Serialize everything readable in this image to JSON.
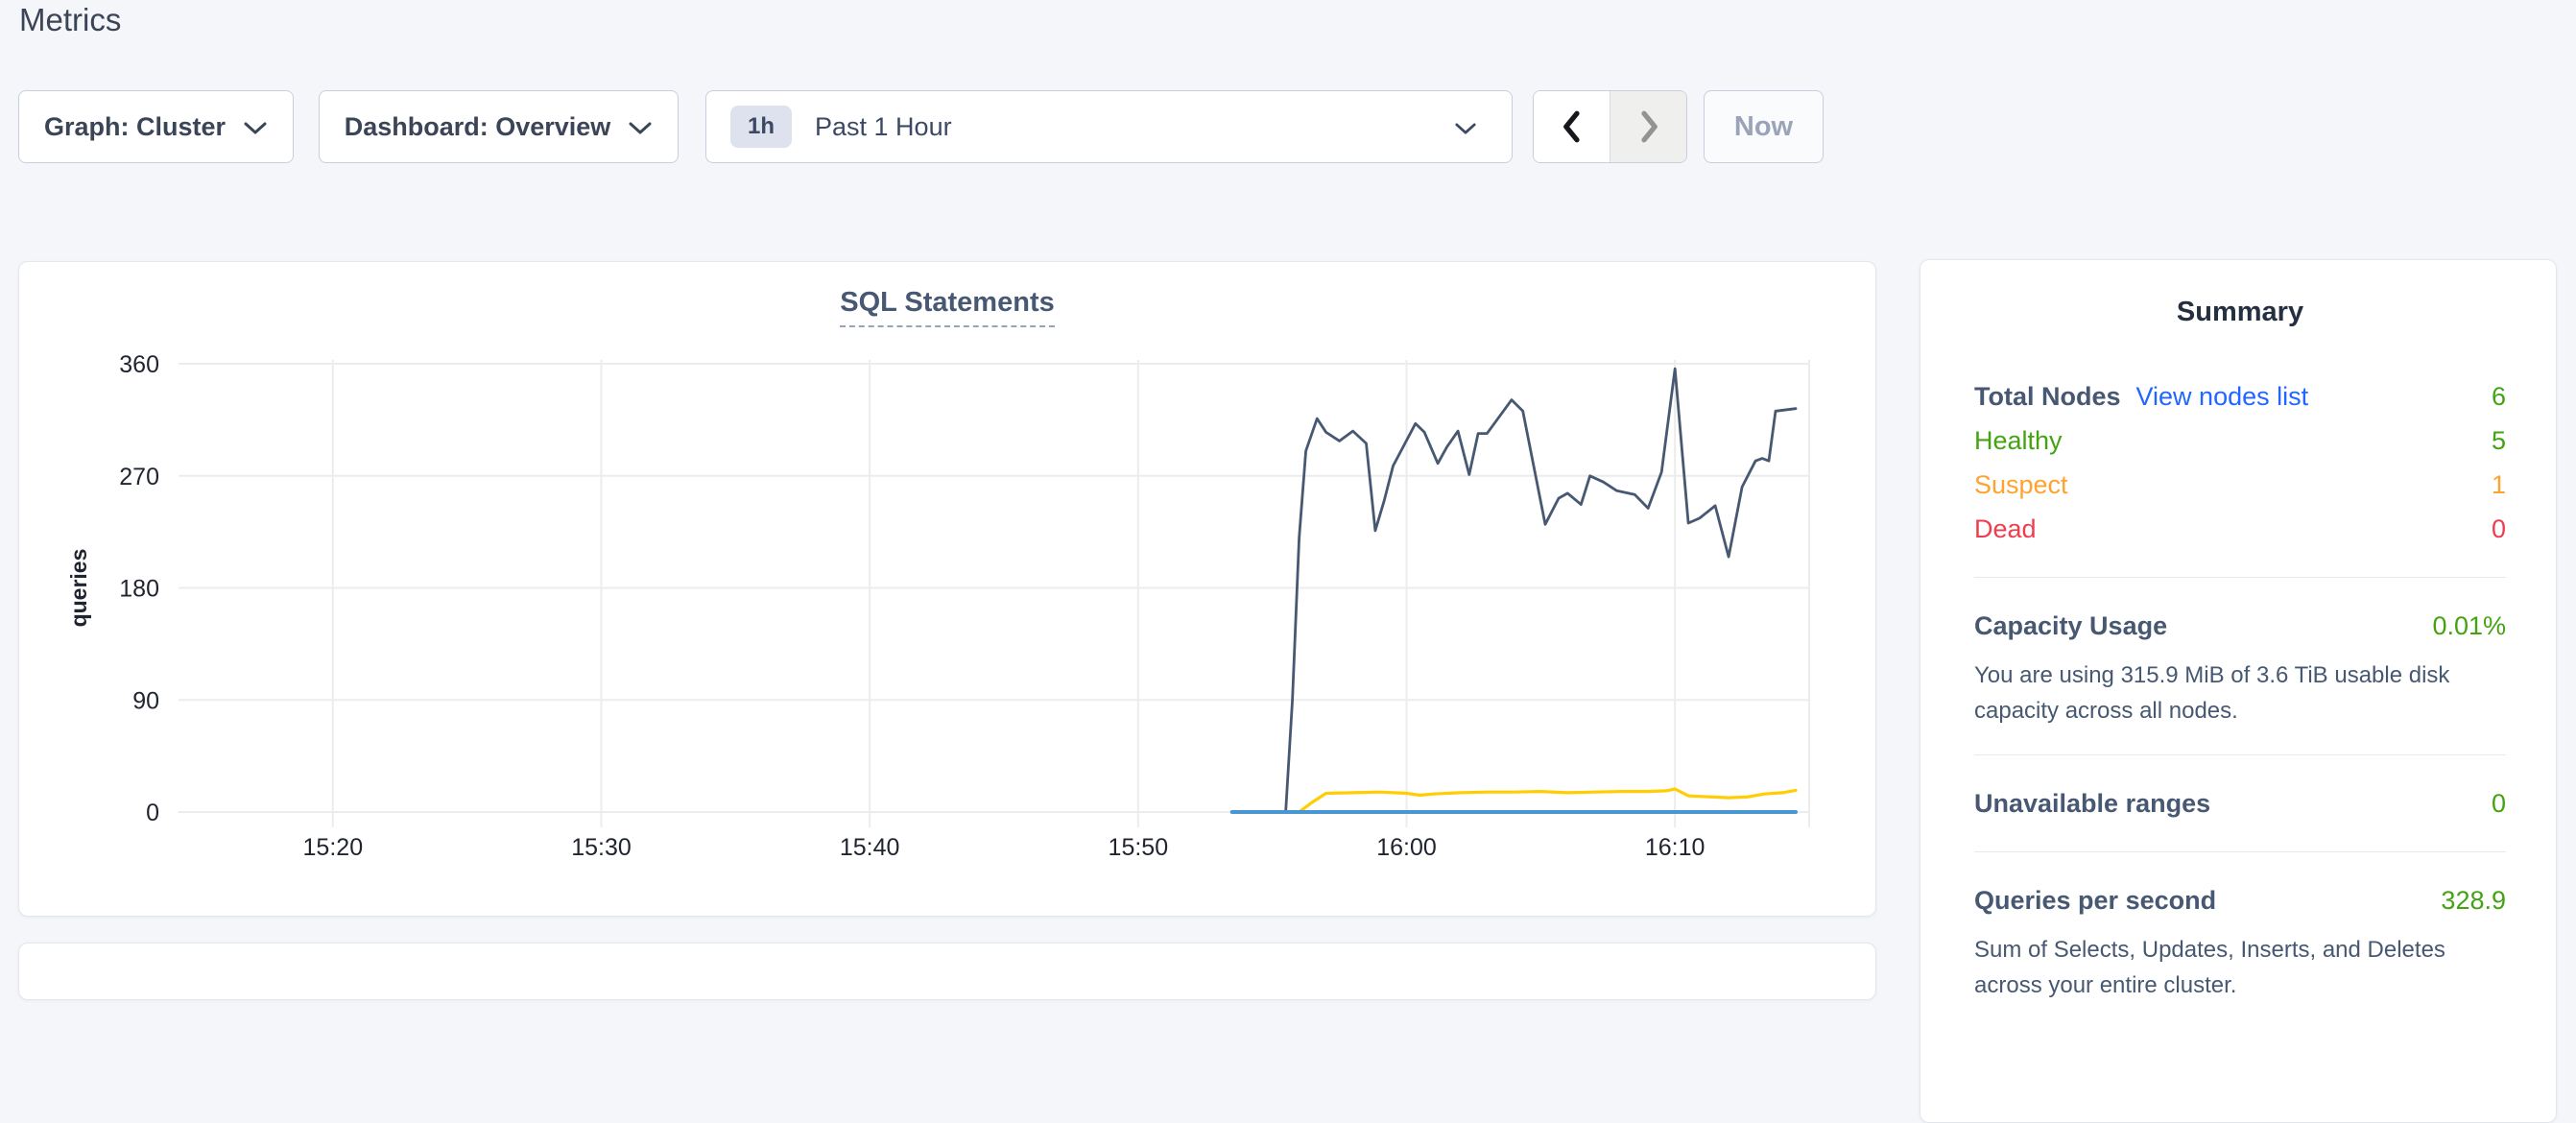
{
  "page": {
    "title": "Metrics"
  },
  "toolbar": {
    "graph_dropdown": {
      "label": "Graph: Cluster"
    },
    "dashboard_dropdown": {
      "label": "Dashboard: Overview"
    },
    "time_selector": {
      "badge": "1h",
      "label": "Past 1 Hour"
    },
    "now_button": {
      "label": "Now"
    }
  },
  "summary": {
    "title": "Summary",
    "nodes": {
      "label": "Total Nodes",
      "link": "View nodes list",
      "value": "6",
      "rows": [
        {
          "label": "Healthy",
          "value": "5"
        },
        {
          "label": "Suspect",
          "value": "1"
        },
        {
          "label": "Dead",
          "value": "0"
        }
      ]
    },
    "capacity": {
      "label": "Capacity Usage",
      "value": "0.01%",
      "description": "You are using 315.9 MiB of 3.6 TiB usable disk capacity across all nodes."
    },
    "unavailable": {
      "label": "Unavailable ranges",
      "value": "0"
    },
    "qps": {
      "label": "Queries per second",
      "value": "328.9",
      "description": "Sum of Selects, Updates, Inserts, and Deletes across your entire cluster."
    }
  },
  "colors": {
    "accent_link": "#2266ff",
    "green": "#44a312",
    "orange": "#ffa32f",
    "red": "#ee3d4e",
    "line_dark": "#475872",
    "line_yellow": "#ffcd02",
    "line_blue": "#4897d2"
  },
  "chart_data": {
    "type": "line",
    "title": "SQL Statements",
    "ylabel": "queries",
    "ylim": [
      0,
      360
    ],
    "y_ticks": [
      0,
      90,
      180,
      270,
      360
    ],
    "x_domain": [
      "15:14:45",
      "16:15:00"
    ],
    "x_ticks": [
      "15:20",
      "15:30",
      "15:40",
      "15:50",
      "16:00",
      "16:10"
    ],
    "grid": true,
    "legend": "none",
    "series": [
      {
        "name": "dark-slate-series",
        "color": "#475872",
        "width": 2.8,
        "points": [
          [
            "15:55:30",
            0
          ],
          [
            "15:55:45",
            90
          ],
          [
            "15:56:00",
            220
          ],
          [
            "15:56:15",
            290
          ],
          [
            "15:56:40",
            316
          ],
          [
            "15:57:00",
            305
          ],
          [
            "15:57:30",
            298
          ],
          [
            "15:58:00",
            306
          ],
          [
            "15:58:30",
            296
          ],
          [
            "15:58:50",
            226
          ],
          [
            "15:59:10",
            250
          ],
          [
            "15:59:30",
            278
          ],
          [
            "16:00:20",
            312
          ],
          [
            "16:00:40",
            305
          ],
          [
            "16:01:10",
            280
          ],
          [
            "16:01:30",
            293
          ],
          [
            "16:01:55",
            306
          ],
          [
            "16:02:20",
            271
          ],
          [
            "16:02:40",
            304
          ],
          [
            "16:03:00",
            304
          ],
          [
            "16:03:55",
            331
          ],
          [
            "16:04:20",
            322
          ],
          [
            "16:05:10",
            231
          ],
          [
            "16:05:40",
            252
          ],
          [
            "16:06:00",
            256
          ],
          [
            "16:06:30",
            247
          ],
          [
            "16:06:50",
            270
          ],
          [
            "16:07:20",
            265
          ],
          [
            "16:07:50",
            258
          ],
          [
            "16:08:30",
            255
          ],
          [
            "16:09:00",
            244
          ],
          [
            "16:09:30",
            273
          ],
          [
            "16:10:00",
            356
          ],
          [
            "16:10:30",
            232
          ],
          [
            "16:10:55",
            236
          ],
          [
            "16:11:30",
            246
          ],
          [
            "16:12:00",
            205
          ],
          [
            "16:12:30",
            261
          ],
          [
            "16:13:00",
            282
          ],
          [
            "16:13:15",
            284
          ],
          [
            "16:13:30",
            282
          ],
          [
            "16:13:45",
            322
          ],
          [
            "16:14:30",
            324
          ]
        ]
      },
      {
        "name": "yellow-series",
        "color": "#ffcd02",
        "width": 3.2,
        "points": [
          [
            "15:56:00",
            0
          ],
          [
            "15:56:30",
            8
          ],
          [
            "15:57:00",
            15
          ],
          [
            "15:58:00",
            15.5
          ],
          [
            "15:59:00",
            16
          ],
          [
            "16:00:00",
            15
          ],
          [
            "16:00:30",
            13.5
          ],
          [
            "16:01:00",
            14.5
          ],
          [
            "16:02:00",
            15.5
          ],
          [
            "16:03:00",
            16
          ],
          [
            "16:04:00",
            16
          ],
          [
            "16:05:00",
            16.5
          ],
          [
            "16:06:00",
            15.5
          ],
          [
            "16:07:00",
            16
          ],
          [
            "16:08:00",
            16.5
          ],
          [
            "16:09:00",
            16.5
          ],
          [
            "16:09:40",
            17
          ],
          [
            "16:10:00",
            18.5
          ],
          [
            "16:10:30",
            13
          ],
          [
            "16:11:00",
            12.5
          ],
          [
            "16:12:00",
            11.5
          ],
          [
            "16:12:40",
            12
          ],
          [
            "16:13:20",
            14.5
          ],
          [
            "16:14:00",
            15.5
          ],
          [
            "16:14:30",
            17.4
          ]
        ]
      },
      {
        "name": "blue-series",
        "color": "#4897d2",
        "width": 4,
        "points": [
          [
            "15:53:30",
            0
          ],
          [
            "16:00:00",
            0
          ],
          [
            "16:05:00",
            0
          ],
          [
            "16:10:00",
            0
          ],
          [
            "16:14:30",
            0
          ]
        ]
      }
    ]
  }
}
